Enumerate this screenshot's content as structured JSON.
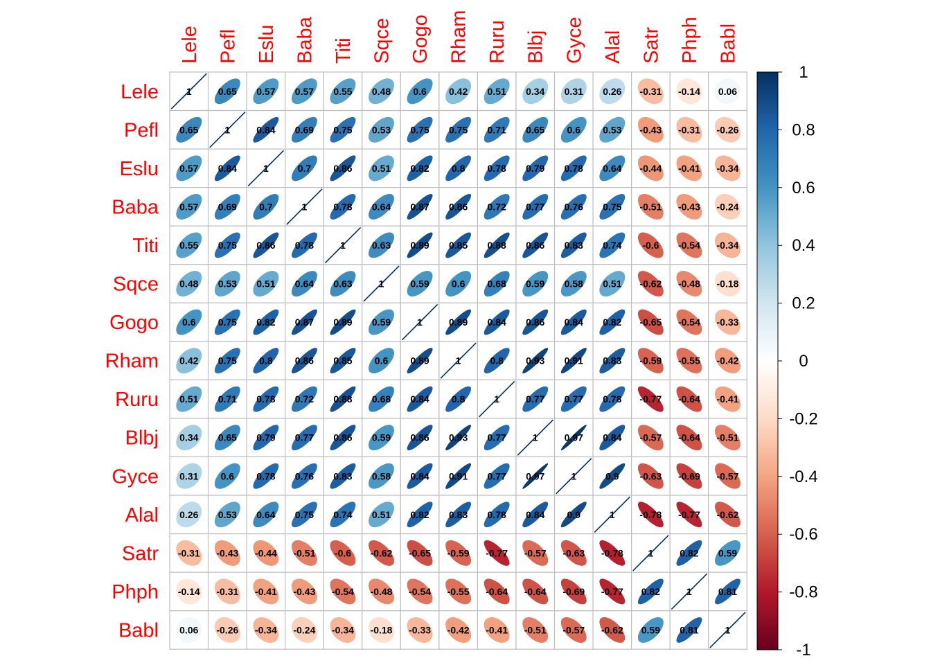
{
  "chart_data": {
    "type": "heatmap",
    "method": "ellipse",
    "variables": [
      "Lele",
      "Pefl",
      "Eslu",
      "Baba",
      "Titi",
      "Sqce",
      "Gogo",
      "Rham",
      "Ruru",
      "Blbj",
      "Gyce",
      "Alal",
      "Satr",
      "Phph",
      "Babl"
    ],
    "matrix": [
      [
        1,
        0.65,
        0.57,
        0.57,
        0.55,
        0.48,
        0.6,
        0.42,
        0.51,
        0.34,
        0.31,
        0.26,
        -0.31,
        -0.14,
        0.06
      ],
      [
        0.65,
        1,
        0.84,
        0.69,
        0.75,
        0.53,
        0.75,
        0.75,
        0.71,
        0.65,
        0.6,
        0.53,
        -0.43,
        -0.31,
        -0.26
      ],
      [
        0.57,
        0.84,
        1,
        0.7,
        0.86,
        0.51,
        0.82,
        0.8,
        0.78,
        0.79,
        0.78,
        0.64,
        -0.44,
        -0.41,
        -0.34
      ],
      [
        0.57,
        0.69,
        0.7,
        1,
        0.78,
        0.64,
        0.87,
        0.86,
        0.72,
        0.77,
        0.76,
        0.75,
        -0.51,
        -0.43,
        -0.24
      ],
      [
        0.55,
        0.75,
        0.86,
        0.78,
        1,
        0.63,
        0.89,
        0.85,
        0.88,
        0.86,
        0.83,
        0.74,
        -0.6,
        -0.54,
        -0.34
      ],
      [
        0.48,
        0.53,
        0.51,
        0.64,
        0.63,
        1,
        0.59,
        0.6,
        0.68,
        0.59,
        0.58,
        0.51,
        -0.62,
        -0.48,
        -0.18
      ],
      [
        0.6,
        0.75,
        0.82,
        0.87,
        0.89,
        0.59,
        1,
        0.89,
        0.84,
        0.86,
        0.84,
        0.82,
        -0.65,
        -0.54,
        -0.33
      ],
      [
        0.42,
        0.75,
        0.8,
        0.86,
        0.85,
        0.6,
        0.89,
        1,
        0.8,
        0.93,
        0.91,
        0.83,
        -0.59,
        -0.55,
        -0.42
      ],
      [
        0.51,
        0.71,
        0.78,
        0.72,
        0.88,
        0.68,
        0.84,
        0.8,
        1,
        0.77,
        0.77,
        0.78,
        -0.77,
        -0.64,
        -0.41
      ],
      [
        0.34,
        0.65,
        0.79,
        0.77,
        0.86,
        0.59,
        0.86,
        0.93,
        0.77,
        1,
        0.97,
        0.84,
        -0.57,
        -0.64,
        -0.51
      ],
      [
        0.31,
        0.6,
        0.78,
        0.76,
        0.83,
        0.58,
        0.84,
        0.91,
        0.77,
        0.97,
        1,
        0.9,
        -0.63,
        -0.69,
        -0.57
      ],
      [
        0.26,
        0.53,
        0.64,
        0.75,
        0.74,
        0.51,
        0.82,
        0.83,
        0.78,
        0.84,
        0.9,
        1,
        -0.78,
        -0.77,
        -0.62
      ],
      [
        -0.31,
        -0.43,
        -0.44,
        -0.51,
        -0.6,
        -0.62,
        -0.65,
        -0.59,
        -0.77,
        -0.57,
        -0.63,
        -0.78,
        1,
        0.82,
        0.59
      ],
      [
        -0.14,
        -0.31,
        -0.41,
        -0.43,
        -0.54,
        -0.48,
        -0.54,
        -0.55,
        -0.64,
        -0.64,
        -0.69,
        -0.77,
        0.82,
        1,
        0.81
      ],
      [
        0.06,
        -0.26,
        -0.34,
        -0.24,
        -0.34,
        -0.18,
        -0.33,
        -0.42,
        -0.41,
        -0.51,
        -0.57,
        -0.62,
        0.59,
        0.81,
        1
      ]
    ],
    "color_scale": {
      "range": [
        -1,
        1
      ],
      "ticks": [
        "1",
        "0.8",
        "0.6",
        "0.4",
        "0.2",
        "0",
        "-0.2",
        "-0.4",
        "-0.6",
        "-0.8",
        "-1"
      ],
      "stops": [
        "#67001F",
        "#B2182B",
        "#D6604D",
        "#F4A582",
        "#FDDBC7",
        "#FFFFFF",
        "#D1E5F0",
        "#92C5DE",
        "#4393C3",
        "#2166AC",
        "#053061"
      ]
    },
    "label_color": "#FF0000",
    "grid_color": "#BEBEBE",
    "legend_position": "right",
    "title": "",
    "xlabel": "",
    "ylabel": ""
  }
}
